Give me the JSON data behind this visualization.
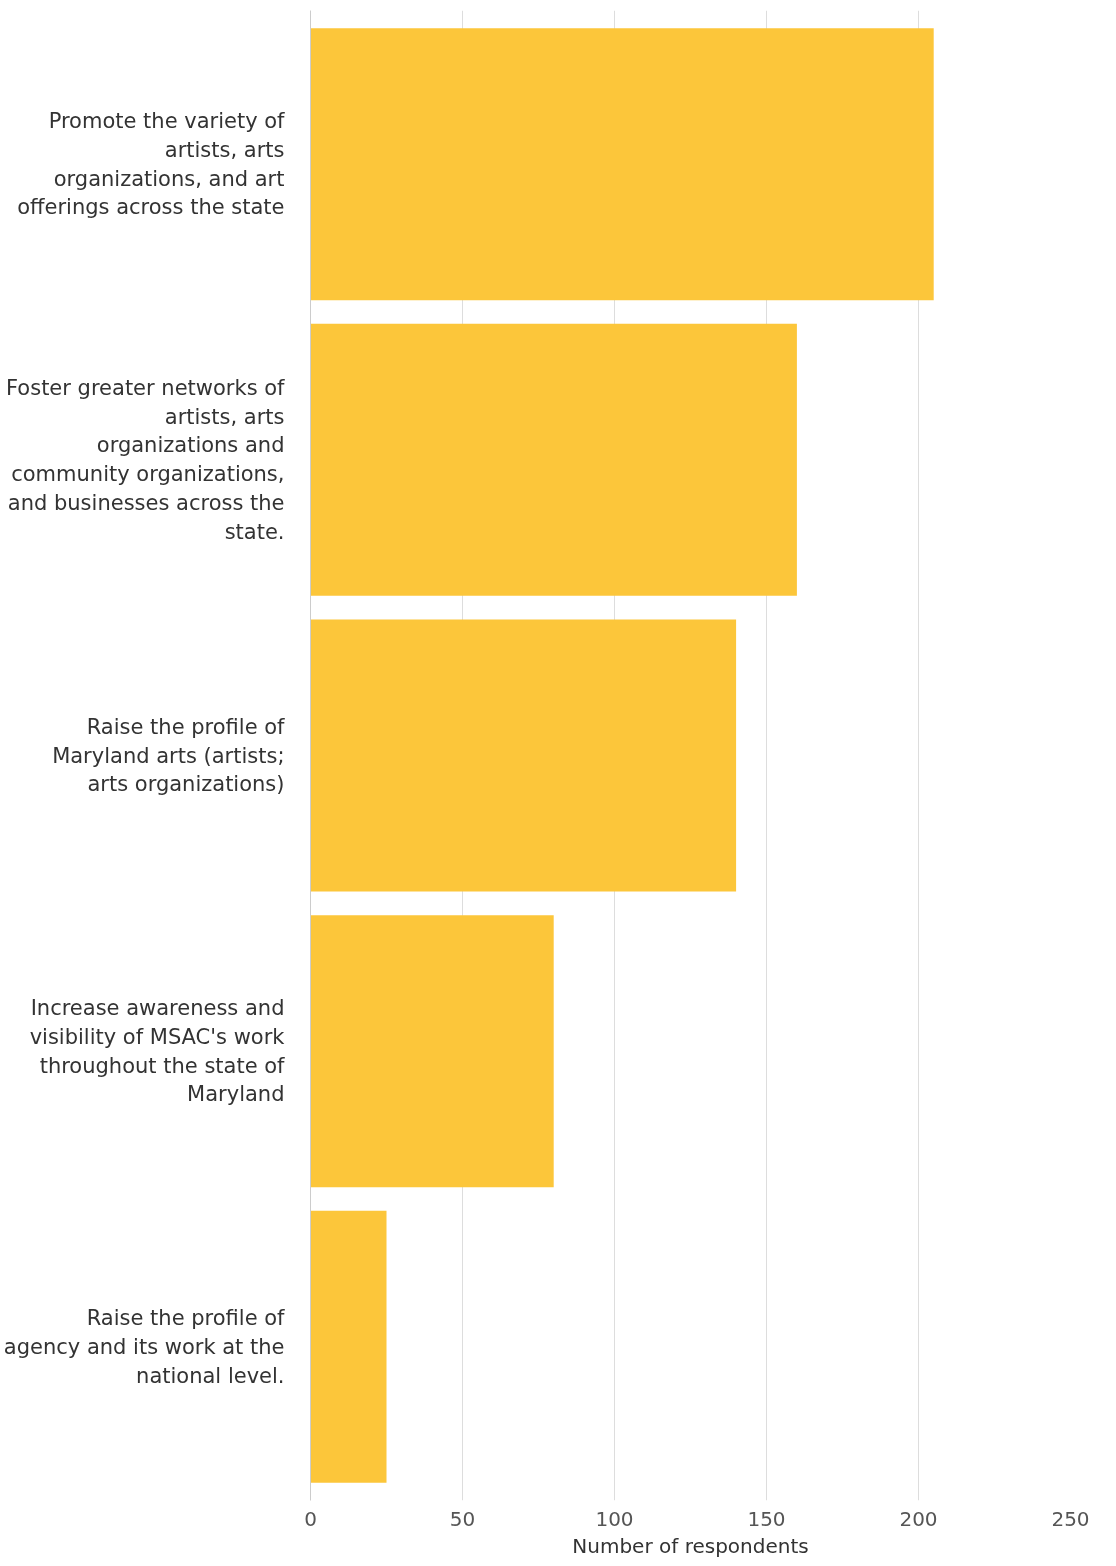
{
  "chart_data": {
    "type": "bar",
    "orientation": "horizontal",
    "xlabel": "Number of respondents",
    "categories": [
      "Promote the variety of artists, arts organizations, and art offerings across the state",
      "Foster greater networks of artists, arts organizations and community organizations, and businesses across the state.",
      "Raise the profile of Maryland arts (artists; arts organizations)",
      "Increase awareness and visibility of MSAC's work throughout the state of Maryland",
      "Raise the profile of agency and its work at the national level."
    ],
    "values": [
      205,
      160,
      140,
      80,
      25
    ],
    "color": "#fcc63a",
    "xlim": [
      0,
      250
    ],
    "xticks": [
      0,
      50,
      100,
      150,
      200,
      250
    ],
    "grid": "x"
  }
}
